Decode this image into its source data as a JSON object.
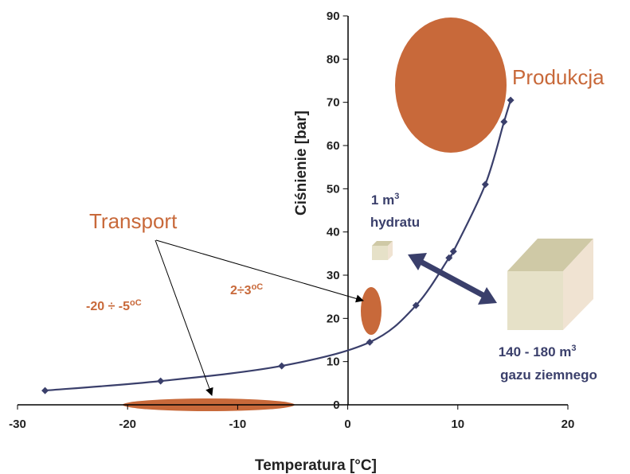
{
  "chart_data": {
    "type": "line",
    "xlabel": "Temperatura [",
    "xlabel_unit": "°C]",
    "ylabel": "Ciśnienie [bar]",
    "xlim": [
      -30,
      20
    ],
    "ylim": [
      0,
      90
    ],
    "x_ticks": [
      "-30",
      "-20",
      "-10",
      "0",
      "10",
      "20"
    ],
    "y_ticks": [
      "0",
      "10",
      "20",
      "30",
      "40",
      "50",
      "60",
      "70",
      "80",
      "90"
    ],
    "series": [
      {
        "x": [
          -27.5,
          -17,
          -6,
          2,
          6.2,
          9.2,
          9.6,
          12.5,
          14.2,
          14.8
        ],
        "y": [
          3.3,
          5.5,
          9,
          14.5,
          23,
          34,
          35.5,
          51,
          65.5,
          70.5
        ]
      }
    ],
    "annotations": {
      "production_label": "Produkcja",
      "transport_label": "Transport",
      "range_wide": "-20 ÷ -5",
      "range_wide_unit": "oC",
      "range_narrow": "2÷3",
      "range_narrow_unit": "oC",
      "hydrate_line1": "1 m",
      "hydrate_sup": "3",
      "hydrate_line2": "hydratu",
      "gas_line1": "140 - 180 m",
      "gas_sup": "3",
      "gas_line2": "gazu ziemnego"
    },
    "colors": {
      "curve": "#3a3f6b",
      "marker": "#3a3f6b",
      "region": "#c8693a",
      "arrow": "#3a3f6b",
      "cube_front": "#e6e1c8",
      "cube_top": "#cfc9a6",
      "cube_side": "#f0e3d2"
    }
  }
}
